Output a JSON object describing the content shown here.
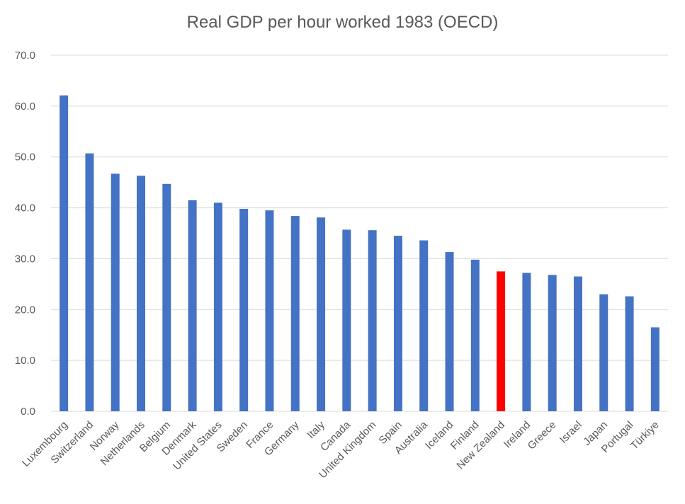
{
  "chart_data": {
    "type": "bar",
    "title": "Real GDP per hour worked 1983 (OECD)",
    "xlabel": "",
    "ylabel": "",
    "ylim": [
      0,
      70
    ],
    "yticks": [
      "0.0",
      "10.0",
      "20.0",
      "30.0",
      "40.0",
      "50.0",
      "60.0",
      "70.0"
    ],
    "grid": true,
    "colors": {
      "default": "#4472C4",
      "highlight": "#FF0000",
      "grid": "#D9D9D9",
      "text": "#595959"
    },
    "highlight_category": "New Zealand",
    "categories": [
      "Luxembourg",
      "Switzerland",
      "Norway",
      "Netherlands",
      "Belgium",
      "Denmark",
      "United States",
      "Sweden",
      "France",
      "Germany",
      "Italy",
      "Canada",
      "United Kingdom",
      "Spain",
      "Australia",
      "Iceland",
      "Finland",
      "New Zealand",
      "Ireland",
      "Greece",
      "Israel",
      "Japan",
      "Portugal",
      "Türkiye"
    ],
    "values": [
      62.1,
      50.7,
      46.7,
      46.3,
      44.7,
      41.5,
      41.0,
      39.8,
      39.5,
      38.4,
      38.1,
      35.7,
      35.6,
      34.5,
      33.6,
      31.3,
      29.8,
      27.5,
      27.2,
      26.8,
      26.5,
      23.0,
      22.6,
      16.5
    ]
  }
}
